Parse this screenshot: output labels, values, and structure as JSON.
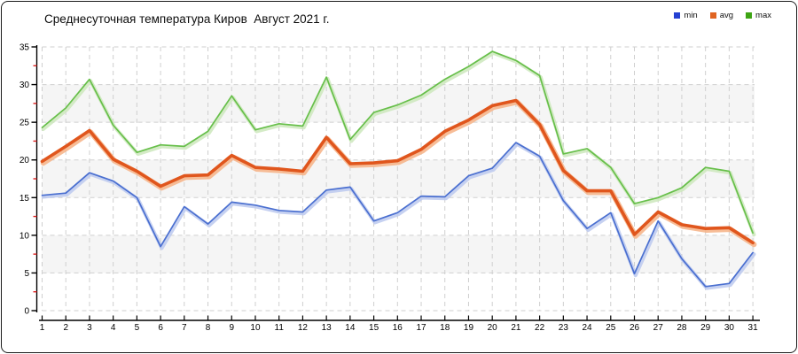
{
  "title": "Среднесуточная температура Киров  Август 2021 г.",
  "legend": {
    "items": [
      {
        "label": "min",
        "color": "#2440d2"
      },
      {
        "label": "avg",
        "color": "#e06421"
      },
      {
        "label": "max",
        "color": "#3da413"
      }
    ]
  },
  "chart_data": {
    "type": "line",
    "title": "Среднесуточная температура Киров  Август 2021 г.",
    "xlabel": "",
    "ylabel": "",
    "x": [
      1,
      2,
      3,
      4,
      5,
      6,
      7,
      8,
      9,
      10,
      11,
      12,
      13,
      14,
      15,
      16,
      17,
      18,
      19,
      20,
      21,
      22,
      23,
      24,
      25,
      26,
      27,
      28,
      29,
      30,
      31
    ],
    "x_tick_labels": [
      "1",
      "2",
      "3",
      "4",
      "5",
      "6",
      "7",
      "8",
      "9",
      "10",
      "11",
      "12",
      "13",
      "14",
      "15",
      "16",
      "17",
      "18",
      "19",
      "20",
      "21",
      "22",
      "23",
      "24",
      "25",
      "26",
      "27",
      "28",
      "29",
      "30",
      "31"
    ],
    "series": [
      {
        "name": "min",
        "color": "#4a6fd0",
        "halo": "#bcc9ee",
        "width": 1.7,
        "values": [
          15.3,
          15.6,
          18.3,
          17.2,
          15.0,
          8.5,
          13.8,
          11.5,
          14.4,
          14.0,
          13.3,
          13.1,
          16.0,
          16.4,
          11.9,
          13.0,
          15.2,
          15.1,
          17.9,
          18.9,
          22.3,
          20.5,
          14.6,
          10.9,
          13.0,
          4.9,
          11.9,
          6.9,
          3.2,
          3.6,
          7.7
        ]
      },
      {
        "name": "avg",
        "color": "#e0561d",
        "halo": "#f6b185",
        "width": 3.6,
        "values": [
          19.8,
          21.8,
          23.9,
          20.1,
          18.5,
          16.5,
          17.9,
          18.0,
          20.6,
          19.0,
          18.8,
          18.5,
          23.0,
          19.5,
          19.6,
          19.9,
          21.4,
          23.8,
          25.3,
          27.2,
          27.9,
          24.7,
          18.6,
          15.9,
          15.9,
          10.1,
          13.1,
          11.4,
          10.9,
          11.0,
          9.0
        ]
      },
      {
        "name": "max",
        "color": "#67bf4a",
        "halo": "#cde7bc",
        "width": 1.7,
        "values": [
          24.3,
          26.9,
          30.7,
          24.6,
          21.0,
          22.0,
          21.8,
          23.8,
          28.5,
          24.0,
          24.8,
          24.5,
          31.0,
          22.7,
          26.3,
          27.3,
          28.6,
          30.7,
          32.4,
          34.4,
          33.2,
          31.2,
          20.8,
          21.5,
          19.0,
          14.2,
          15.0,
          16.3,
          19.0,
          18.5,
          10.3
        ]
      }
    ],
    "ylim": [
      0,
      35
    ],
    "y_ticks": [
      0,
      5,
      10,
      15,
      20,
      25,
      30,
      35
    ],
    "y_minor_ticks": [
      2.5,
      7.5,
      12.5,
      17.5,
      22.5,
      27.5,
      32.5
    ],
    "grid": "dashed",
    "grid_color": "#cfcfcf",
    "bands": [
      [
        5,
        10
      ],
      [
        15,
        20
      ],
      [
        25,
        30
      ]
    ],
    "band_color": "#f5f5f5",
    "axis_color": "#000000",
    "minor_tick_color": "#dd2222",
    "legend_position": "top-right"
  }
}
